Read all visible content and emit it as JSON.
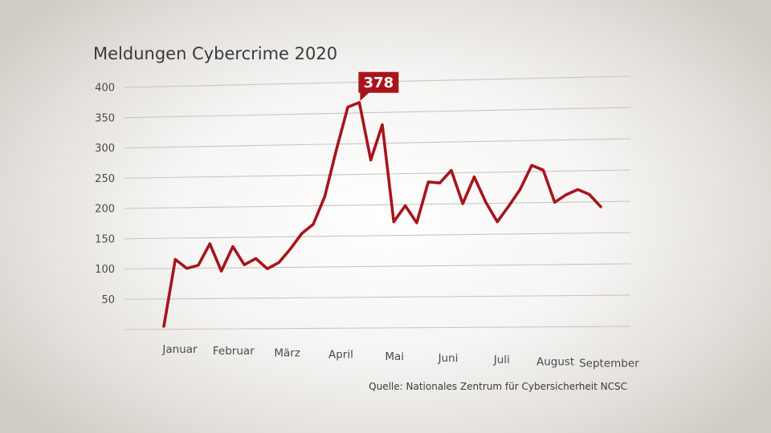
{
  "chart_data": {
    "type": "line",
    "title": "Meldungen Cybercrime 2020",
    "source": "Quelle: Nationales Zentrum für Cybersicherheit NCSC",
    "y_ticks": [
      50,
      100,
      150,
      200,
      250,
      300,
      350,
      400
    ],
    "ylim": [
      0,
      400
    ],
    "x_labels": [
      "Januar",
      "Februar",
      "März",
      "April",
      "Mai",
      "Juni",
      "Juli",
      "August",
      "September"
    ],
    "grid": true,
    "line_color": "#a8141c",
    "series": [
      {
        "values": [
          5,
          115,
          100,
          105,
          140,
          95,
          135,
          105,
          115,
          98,
          108,
          130,
          155,
          170,
          215,
          290,
          360,
          367,
          273,
          330,
          172,
          198,
          170,
          236,
          234,
          254,
          200,
          243,
          202,
          170,
          195,
          222,
          260,
          252,
          200,
          212,
          220,
          212,
          192
        ]
      }
    ],
    "annotation": {
      "label": "378",
      "point_index": 17,
      "color": "#a8141c"
    }
  }
}
